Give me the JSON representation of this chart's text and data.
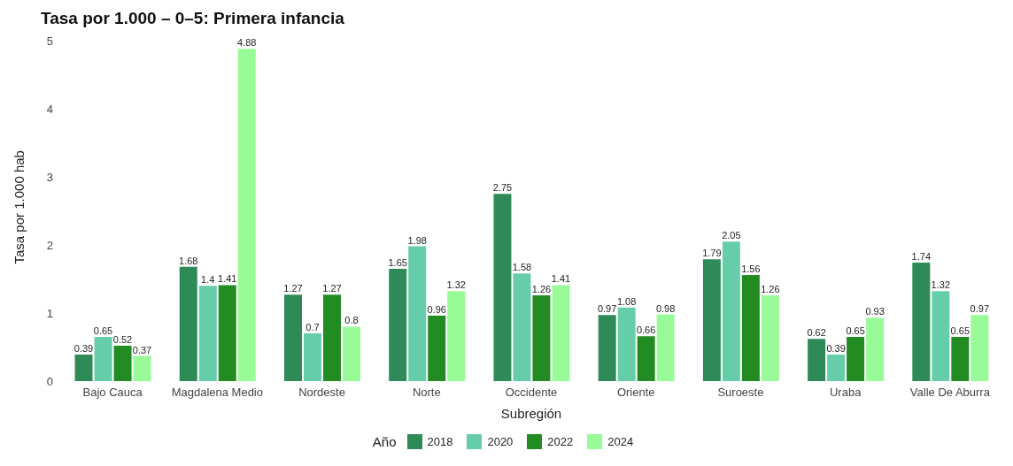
{
  "chart_data": {
    "type": "bar",
    "title": "Tasa por 1.000 – 0–5: Primera infancia",
    "xlabel": "Subregión",
    "ylabel": "Tasa por 1.000 hab",
    "legend_title": "Año",
    "legend": "bottom",
    "categories": [
      "Bajo Cauca",
      "Magdalena Medio",
      "Nordeste",
      "Norte",
      "Occidente",
      "Oriente",
      "Suroeste",
      "Uraba",
      "Valle De Aburra"
    ],
    "series": [
      {
        "name": "2018",
        "color": "#2e8b57",
        "values": [
          0.39,
          1.68,
          1.27,
          1.65,
          2.75,
          0.97,
          1.79,
          0.62,
          1.74
        ]
      },
      {
        "name": "2020",
        "color": "#66cdaa",
        "values": [
          0.65,
          1.4,
          0.7,
          1.98,
          1.58,
          1.08,
          2.05,
          0.39,
          1.32
        ]
      },
      {
        "name": "2022",
        "color": "#228b22",
        "values": [
          0.52,
          1.41,
          1.27,
          0.96,
          1.26,
          0.66,
          1.56,
          0.65,
          0.65
        ]
      },
      {
        "name": "2024",
        "color": "#98fb98",
        "values": [
          0.37,
          4.88,
          0.8,
          1.32,
          1.41,
          0.98,
          1.26,
          0.93,
          0.97
        ]
      }
    ],
    "ylim": [
      0,
      5
    ],
    "yticks": [
      0,
      1,
      2,
      3,
      4,
      5
    ],
    "data_labels": true,
    "grid": false
  }
}
